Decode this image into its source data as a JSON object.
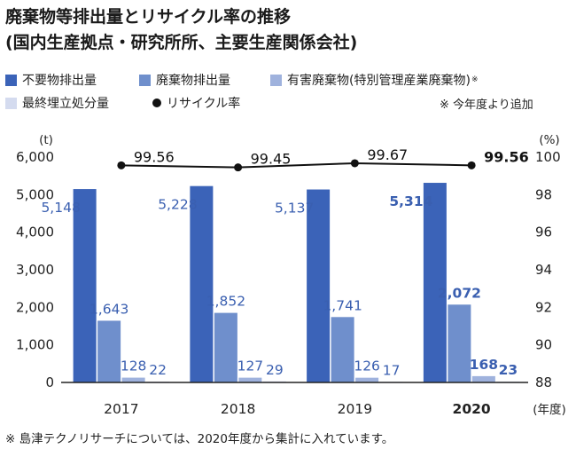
{
  "title_line1": "廃棄物等排出量とリサイクル率の推移",
  "title_line2": "(国内生産拠点・研究所所、主要生産関係会社)",
  "legend": [
    {
      "label": "不要物排出量",
      "color": "#3b63b8"
    },
    {
      "label": "廃棄物排出量",
      "color": "#6f8fcc"
    },
    {
      "label": "有害廃棄物(特別管理産業廃棄物)",
      "color": "#9fb2dd",
      "mark": "※"
    },
    {
      "label": "最終埋立処分量",
      "color": "#d4dbef"
    },
    {
      "label": "リサイクル率",
      "color": "#111111"
    }
  ],
  "note_new": "※ 今年度より追加",
  "footnote": "※ 島津テクノリサーチについては、2020年度から集計に入れています。",
  "chart_data": {
    "type": "bar",
    "categories": [
      "2017",
      "2018",
      "2019",
      "2020"
    ],
    "highlight_category": "2020",
    "series": [
      {
        "name": "不要物排出量",
        "values": [
          5148,
          5228,
          5137,
          5314
        ],
        "labels": [
          "5,148",
          "5,228",
          "5,137",
          "5,314"
        ],
        "color": "#3b63b8"
      },
      {
        "name": "廃棄物排出量",
        "values": [
          1643,
          1852,
          1741,
          2072
        ],
        "labels": [
          "1,643",
          "1,852",
          "1,741",
          "2,072"
        ],
        "color": "#6f8fcc"
      },
      {
        "name": "有害廃棄物(特別管理産業廃棄物)",
        "values": [
          128,
          127,
          126,
          168
        ],
        "labels": [
          "128",
          "127",
          "126",
          "168"
        ],
        "color": "#9fb2dd"
      },
      {
        "name": "最終埋立処分量",
        "values": [
          22,
          29,
          17,
          23
        ],
        "labels": [
          "22",
          "29",
          "17",
          "23"
        ],
        "color": "#d4dbef"
      }
    ],
    "line_series": {
      "name": "リサイクル率",
      "values": [
        99.56,
        99.45,
        99.67,
        99.56
      ],
      "labels": [
        "99.56",
        "99.45",
        "99.67",
        "99.56"
      ],
      "color": "#111111"
    },
    "left_axis": {
      "unit": "(t)",
      "ylim": [
        0,
        6000
      ],
      "ticks": [
        0,
        1000,
        2000,
        3000,
        4000,
        5000,
        6000
      ],
      "tick_labels": [
        "0",
        "1,000",
        "2,000",
        "3,000",
        "4,000",
        "5,000",
        "6,000"
      ]
    },
    "right_axis": {
      "unit": "(%)",
      "ylim": [
        88,
        100
      ],
      "ticks": [
        88,
        90,
        92,
        94,
        96,
        98,
        100
      ],
      "tick_labels": [
        "88",
        "90",
        "92",
        "94",
        "96",
        "98",
        "100"
      ]
    },
    "x_unit": "(年度)",
    "grid": false
  }
}
